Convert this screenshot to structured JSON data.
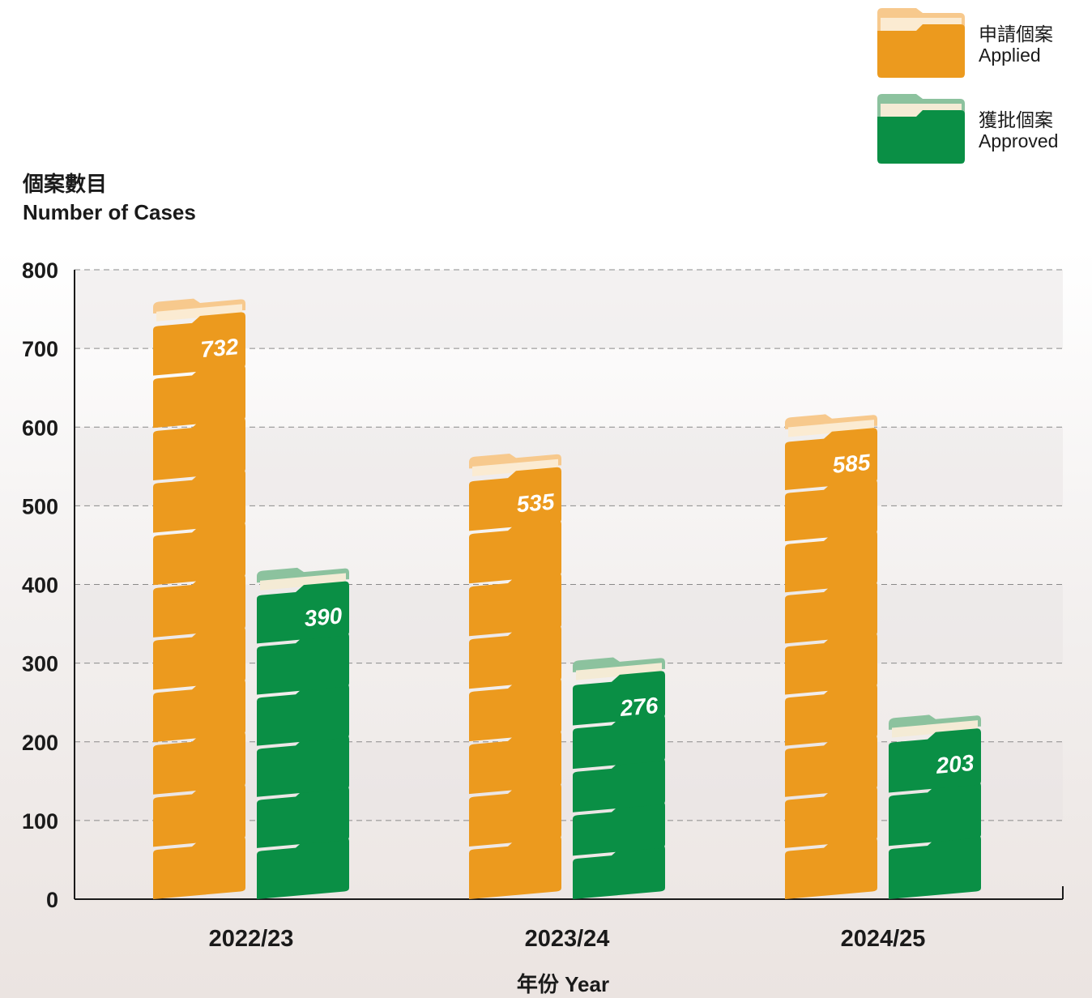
{
  "chart_data": {
    "type": "bar",
    "ylabel_cn": "個案數目",
    "ylabel_en": "Number of Cases",
    "xlabel": "年份 Year",
    "categories": [
      "2022/23",
      "2023/24",
      "2024/25"
    ],
    "series": [
      {
        "name_cn": "申請個案",
        "name_en": "Applied",
        "values": [
          732,
          535,
          585
        ],
        "color": "#EC9A1E",
        "light": "#F7C98D",
        "paper": "#FBEBD2"
      },
      {
        "name_cn": "獲批個案",
        "name_en": "Approved",
        "values": [
          390,
          276,
          203
        ],
        "color": "#0A8F45",
        "light": "#8CC29E",
        "paper": "#F4EBD5"
      }
    ],
    "ylim": [
      0,
      800
    ],
    "yticks": [
      0,
      100,
      200,
      300,
      400,
      500,
      600,
      700,
      800
    ],
    "grid": "dashed-horizontal",
    "legend_position": "top-right"
  }
}
